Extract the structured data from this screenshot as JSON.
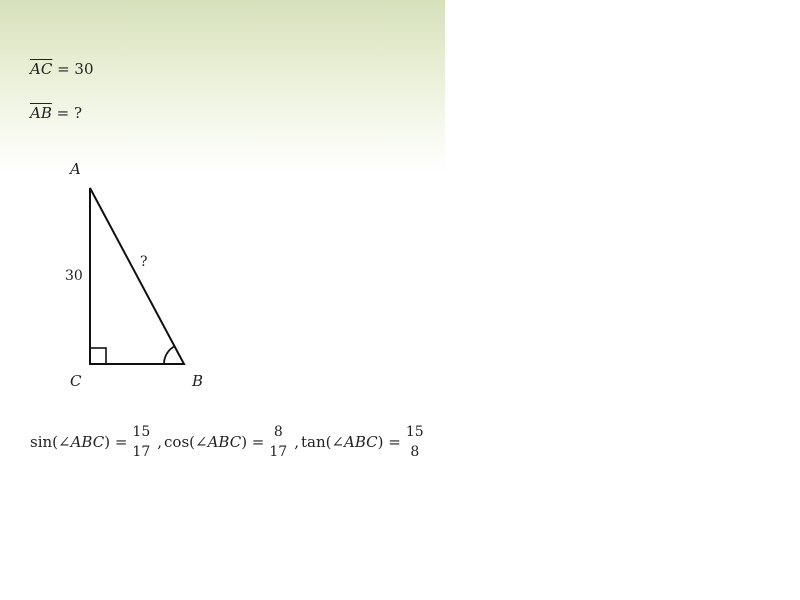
{
  "given": {
    "ac_segment": "AC",
    "ac_relation": "= 30",
    "ab_segment": "AB",
    "ab_relation": "= ?"
  },
  "triangle": {
    "vertex_a": "A",
    "vertex_b": "B",
    "vertex_c": "C",
    "side_ac_label": "30",
    "hypotenuse_label": "?"
  },
  "ratios": {
    "sin": {
      "prefix": "sin(",
      "angle": "∠ABC",
      "suffix": ") =",
      "numerator": "15",
      "denominator": "17"
    },
    "cos": {
      "prefix": "cos(",
      "angle": "∠ABC",
      "suffix": ") =",
      "numerator": "8",
      "denominator": "17"
    },
    "tan": {
      "prefix": "tan(",
      "angle": "∠ABC",
      "suffix": ") =",
      "numerator": "15",
      "denominator": "8"
    },
    "separator": ","
  },
  "colors": {
    "panel_top": "#d6e0bb",
    "ink": "#222222"
  }
}
